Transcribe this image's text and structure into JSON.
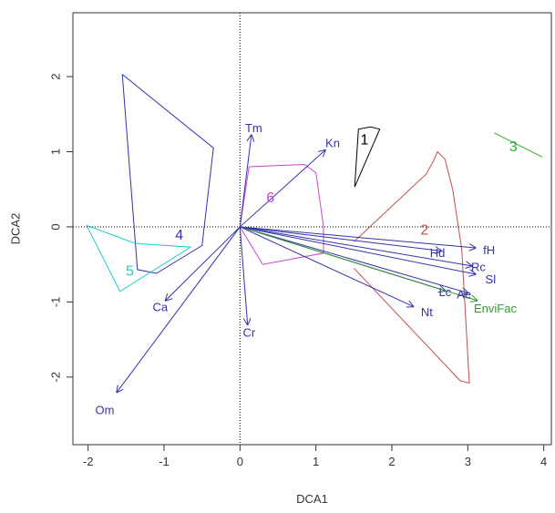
{
  "chart_data": {
    "type": "scatter",
    "title": "",
    "xlabel": "DCA1",
    "ylabel": "DCA2",
    "xlim": [
      -2.2,
      4.1
    ],
    "ylim": [
      -2.9,
      2.85
    ],
    "xticks": [
      -2,
      -1,
      0,
      1,
      2,
      3,
      4
    ],
    "yticks": [
      -2,
      -1,
      0,
      1,
      2
    ],
    "reference_lines": {
      "x": 0,
      "y": 0,
      "style": "dotted"
    },
    "groups": [
      {
        "label": "1",
        "color": "#000000",
        "hull": [
          [
            1.51,
            0.53
          ],
          [
            1.56,
            1.3
          ],
          [
            1.72,
            1.33
          ],
          [
            1.84,
            1.3
          ],
          [
            1.51,
            0.53
          ]
        ],
        "label_pos": [
          1.64,
          1.15
        ]
      },
      {
        "label": "2",
        "color": "#c0504d",
        "hull": [
          [
            1.5,
            -0.2
          ],
          [
            2.45,
            0.7
          ],
          [
            2.55,
            0.88
          ],
          [
            2.6,
            1.0
          ],
          [
            2.7,
            0.9
          ],
          [
            2.8,
            0.5
          ],
          [
            2.92,
            -0.3
          ],
          [
            3.02,
            -2.08
          ],
          [
            2.9,
            -2.05
          ],
          [
            1.5,
            -0.55
          ]
        ],
        "label_pos": [
          2.43,
          -0.05
        ]
      },
      {
        "label": "3",
        "color": "#33aa33",
        "hull": [
          [
            3.35,
            1.25
          ],
          [
            3.98,
            0.93
          ]
        ],
        "label_pos": [
          3.6,
          1.06
        ]
      },
      {
        "label": "4",
        "color": "#3333aa",
        "hull": [
          [
            -1.55,
            2.03
          ],
          [
            -0.35,
            1.05
          ],
          [
            -0.5,
            -0.25
          ],
          [
            -1.1,
            -0.62
          ],
          [
            -1.35,
            -0.57
          ],
          [
            -1.55,
            2.03
          ]
        ],
        "label_pos": [
          -0.8,
          -0.12
        ]
      },
      {
        "label": "5",
        "color": "#22cccc",
        "hull": [
          [
            -2.02,
            0.02
          ],
          [
            -1.38,
            -0.22
          ],
          [
            -0.65,
            -0.27
          ],
          [
            -1.58,
            -0.86
          ],
          [
            -2.02,
            0.02
          ]
        ],
        "label_pos": [
          -1.45,
          -0.6
        ]
      },
      {
        "label": "6",
        "color": "#cc44cc",
        "hull": [
          [
            0.12,
            0.8
          ],
          [
            0.85,
            0.83
          ],
          [
            1.0,
            0.72
          ],
          [
            1.1,
            0.0
          ],
          [
            1.1,
            -0.35
          ],
          [
            0.3,
            -0.5
          ],
          [
            0.0,
            0.0
          ],
          [
            0.12,
            0.8
          ]
        ],
        "label_pos": [
          0.4,
          0.38
        ]
      }
    ],
    "vectors": [
      {
        "name": "Tm",
        "x": 0.15,
        "y": 1.22,
        "label_pos": [
          0.18,
          1.3
        ],
        "anchor": "middle"
      },
      {
        "name": "Kn",
        "x": 1.12,
        "y": 1.02,
        "label_pos": [
          1.22,
          1.1
        ],
        "anchor": "middle"
      },
      {
        "name": "fH",
        "x": 3.1,
        "y": -0.28,
        "label_pos": [
          3.28,
          -0.32
        ],
        "anchor": "middle"
      },
      {
        "name": "Hd",
        "x": 2.65,
        "y": -0.32,
        "label_pos": [
          2.6,
          -0.36
        ],
        "anchor": "middle"
      },
      {
        "name": "Rc",
        "x": 3.05,
        "y": -0.52,
        "label_pos": [
          3.14,
          -0.55
        ],
        "anchor": "middle"
      },
      {
        "name": "Sl",
        "x": 3.1,
        "y": -0.63,
        "label_pos": [
          3.3,
          -0.71
        ],
        "anchor": "middle"
      },
      {
        "name": "Lc",
        "x": 2.7,
        "y": -0.85,
        "label_pos": [
          2.7,
          -0.88
        ],
        "anchor": "middle"
      },
      {
        "name": "Ae",
        "x": 3.0,
        "y": -0.88,
        "label_pos": [
          2.95,
          -0.91
        ],
        "anchor": "middle"
      },
      {
        "name": "EnviFac",
        "x": 3.12,
        "y": -0.98,
        "label_pos": [
          3.08,
          -1.1
        ],
        "anchor": "start",
        "color": "#339933"
      },
      {
        "name": "Nt",
        "x": 2.28,
        "y": -1.06,
        "label_pos": [
          2.46,
          -1.15
        ],
        "anchor": "middle"
      },
      {
        "name": "Ca",
        "x": -0.98,
        "y": -0.98,
        "label_pos": [
          -1.05,
          -1.08
        ],
        "anchor": "middle"
      },
      {
        "name": "Cr",
        "x": 0.1,
        "y": -1.3,
        "label_pos": [
          0.12,
          -1.42
        ],
        "anchor": "middle"
      },
      {
        "name": "Om",
        "x": -1.62,
        "y": -2.2,
        "label_pos": [
          -1.78,
          -2.45
        ],
        "anchor": "middle"
      }
    ],
    "vector_color": "#3333aa",
    "grid": false,
    "legend": "none"
  }
}
